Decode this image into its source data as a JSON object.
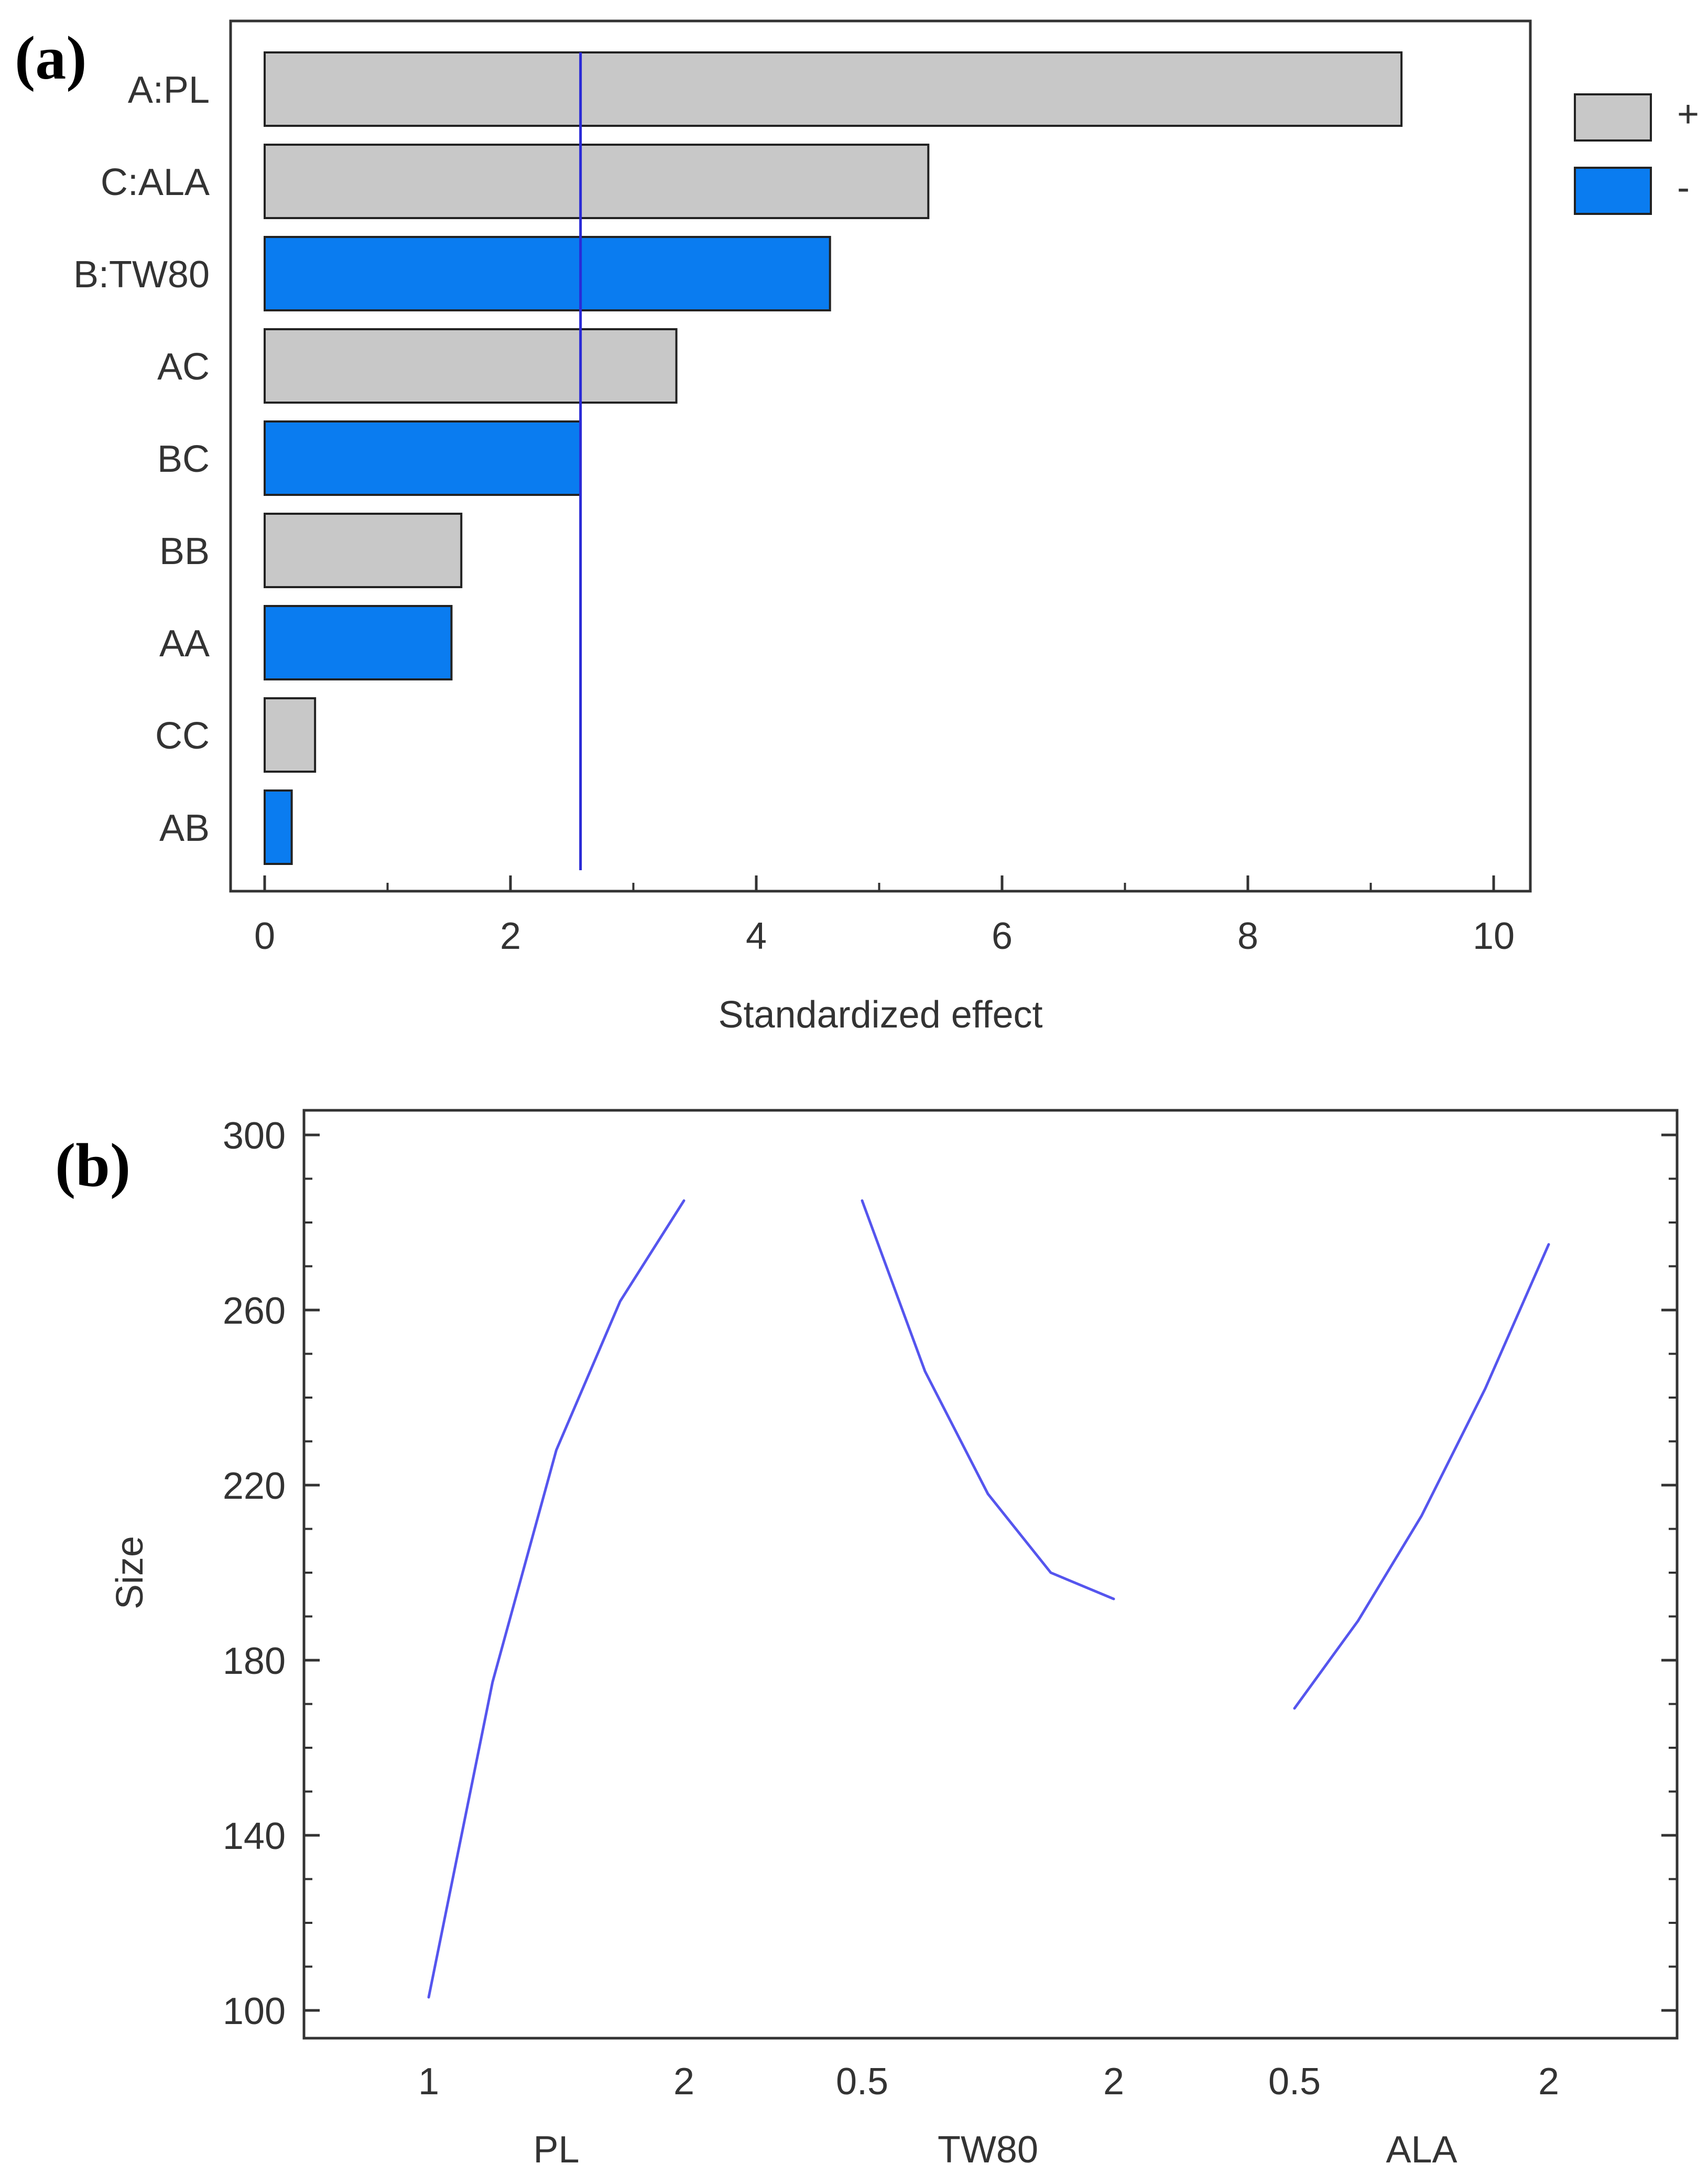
{
  "chart_data": [
    {
      "panel_label": "(a)",
      "type": "bar",
      "orientation": "horizontal",
      "xlabel": "Standardized effect",
      "ylabel": "",
      "xlim": [
        0,
        10
      ],
      "x_ticks": [
        0,
        2,
        4,
        6,
        8,
        10
      ],
      "reference_line": 2.57,
      "categories": [
        "A:PL",
        "C:ALA",
        "B:TW80",
        "AC",
        "BC",
        "BB",
        "AA",
        "CC",
        "AB"
      ],
      "values": [
        9.25,
        5.4,
        4.6,
        3.35,
        2.57,
        1.6,
        1.52,
        0.41,
        0.22
      ],
      "signs": [
        "+",
        "+",
        "-",
        "+",
        "-",
        "+",
        "-",
        "+",
        "-"
      ],
      "legend": [
        {
          "label": "+",
          "color": "#c8c8c8"
        },
        {
          "label": "-",
          "color": "#0a7cf0"
        }
      ],
      "legend_position": "top-right",
      "grid": false
    },
    {
      "panel_label": "(b)",
      "type": "line",
      "ylabel": "Size",
      "ylim": [
        100,
        300
      ],
      "y_ticks": [
        100,
        140,
        180,
        220,
        260,
        300
      ],
      "line_color": "#5555ee",
      "grid": false,
      "series": [
        {
          "name": "PL",
          "xlabel": "PL",
          "tick_labels": [
            "1",
            "2"
          ],
          "x": [
            1,
            1.25,
            1.5,
            1.75,
            2
          ],
          "y": [
            103,
            175,
            228,
            262,
            285
          ]
        },
        {
          "name": "TW80",
          "xlabel": "TW80",
          "tick_labels": [
            "0.5",
            "2"
          ],
          "x": [
            0.5,
            0.875,
            1.25,
            1.625,
            2
          ],
          "y": [
            285,
            246,
            218,
            200,
            194
          ]
        },
        {
          "name": "ALA",
          "xlabel": "ALA",
          "tick_labels": [
            "0.5",
            "2"
          ],
          "x": [
            0.5,
            0.875,
            1.25,
            1.625,
            2
          ],
          "y": [
            169,
            189,
            213,
            242,
            275
          ]
        }
      ]
    }
  ]
}
